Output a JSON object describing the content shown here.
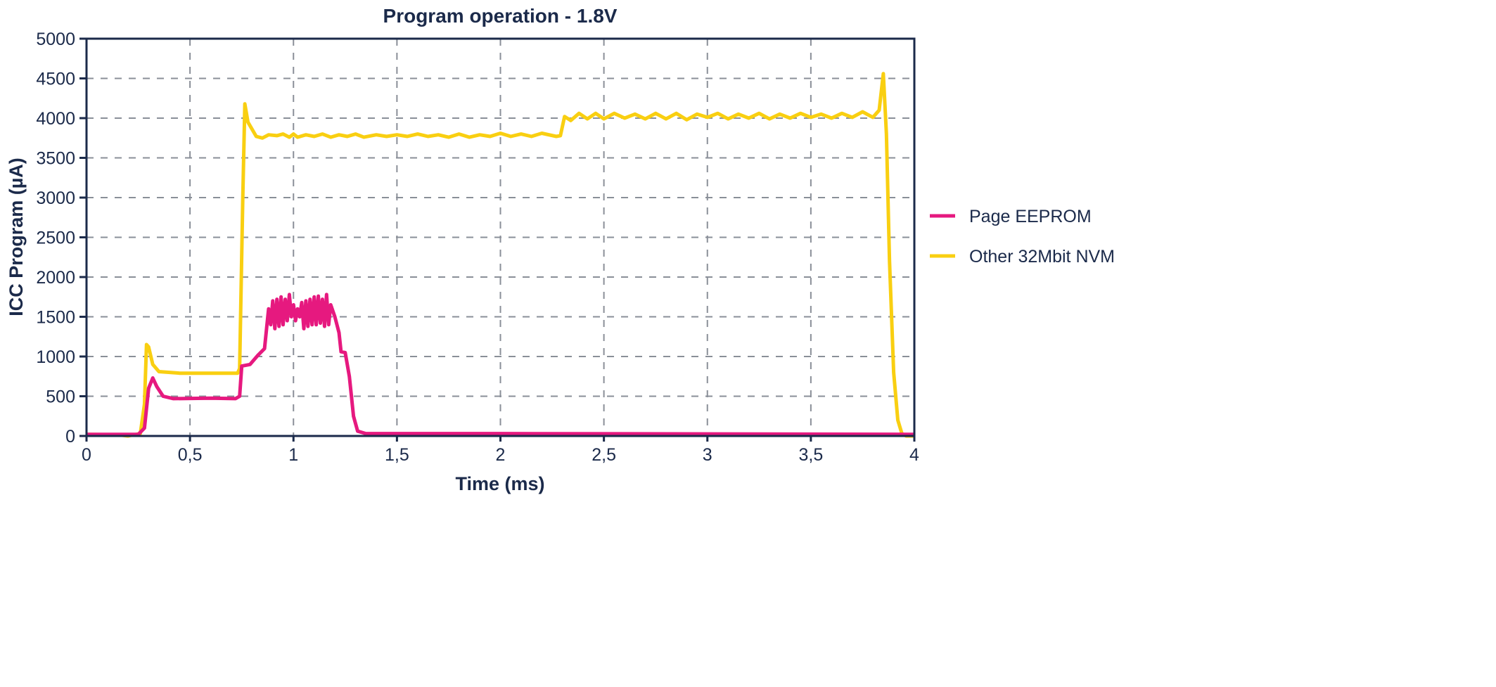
{
  "chart_data": {
    "type": "line",
    "title": "Program operation - 1.8V",
    "xlabel": "Time (ms)",
    "ylabel": "ICC Program (µA)",
    "xlim": [
      0,
      4
    ],
    "ylim": [
      0,
      5000
    ],
    "xticks": [
      0,
      0.5,
      1,
      1.5,
      2,
      2.5,
      3,
      3.5,
      4
    ],
    "xtick_labels": [
      "0",
      "0,5",
      "1",
      "1,5",
      "2",
      "2,5",
      "3",
      "3,5",
      "4"
    ],
    "yticks": [
      0,
      500,
      1000,
      1500,
      2000,
      2500,
      3000,
      3500,
      4000,
      4500,
      5000
    ],
    "ytick_labels": [
      "0",
      "500",
      "1000",
      "1500",
      "2000",
      "2500",
      "3000",
      "3500",
      "4000",
      "4500",
      "5000"
    ],
    "grid": true,
    "legend_position": "right",
    "series": [
      {
        "name": "Page EEPROM",
        "color": "#e6197f",
        "points": [
          [
            0,
            20
          ],
          [
            0.25,
            20
          ],
          [
            0.28,
            100
          ],
          [
            0.3,
            600
          ],
          [
            0.32,
            730
          ],
          [
            0.34,
            620
          ],
          [
            0.37,
            500
          ],
          [
            0.42,
            470
          ],
          [
            0.6,
            475
          ],
          [
            0.72,
            470
          ],
          [
            0.74,
            500
          ],
          [
            0.75,
            880
          ],
          [
            0.79,
            900
          ],
          [
            0.81,
            960
          ],
          [
            0.83,
            1020
          ],
          [
            0.86,
            1100
          ],
          [
            0.87,
            1350
          ],
          [
            0.88,
            1600
          ],
          [
            0.89,
            1400
          ],
          [
            0.9,
            1700
          ],
          [
            0.91,
            1350
          ],
          [
            0.92,
            1720
          ],
          [
            0.93,
            1380
          ],
          [
            0.94,
            1750
          ],
          [
            0.95,
            1400
          ],
          [
            0.96,
            1720
          ],
          [
            0.97,
            1450
          ],
          [
            0.98,
            1780
          ],
          [
            0.99,
            1500
          ],
          [
            1.0,
            1650
          ],
          [
            1.01,
            1450
          ],
          [
            1.02,
            1600
          ],
          [
            1.03,
            1500
          ],
          [
            1.04,
            1680
          ],
          [
            1.05,
            1350
          ],
          [
            1.06,
            1700
          ],
          [
            1.07,
            1380
          ],
          [
            1.08,
            1720
          ],
          [
            1.09,
            1400
          ],
          [
            1.1,
            1750
          ],
          [
            1.11,
            1400
          ],
          [
            1.12,
            1760
          ],
          [
            1.13,
            1420
          ],
          [
            1.14,
            1720
          ],
          [
            1.15,
            1380
          ],
          [
            1.16,
            1780
          ],
          [
            1.17,
            1400
          ],
          [
            1.18,
            1650
          ],
          [
            1.2,
            1500
          ],
          [
            1.22,
            1300
          ],
          [
            1.23,
            1060
          ],
          [
            1.25,
            1050
          ],
          [
            1.27,
            750
          ],
          [
            1.29,
            250
          ],
          [
            1.31,
            60
          ],
          [
            1.35,
            30
          ],
          [
            2,
            30
          ],
          [
            4,
            20
          ]
        ]
      },
      {
        "name": "Other 32Mbit NVM",
        "color": "#f9cf11",
        "points": [
          [
            0,
            20
          ],
          [
            0.15,
            15
          ],
          [
            0.2,
            0
          ],
          [
            0.26,
            30
          ],
          [
            0.28,
            400
          ],
          [
            0.29,
            1150
          ],
          [
            0.3,
            1120
          ],
          [
            0.32,
            900
          ],
          [
            0.35,
            810
          ],
          [
            0.45,
            790
          ],
          [
            0.6,
            790
          ],
          [
            0.73,
            790
          ],
          [
            0.74,
            850
          ],
          [
            0.755,
            3000
          ],
          [
            0.765,
            4180
          ],
          [
            0.78,
            3950
          ],
          [
            0.82,
            3770
          ],
          [
            0.85,
            3750
          ],
          [
            0.88,
            3790
          ],
          [
            0.92,
            3780
          ],
          [
            0.95,
            3800
          ],
          [
            0.98,
            3760
          ],
          [
            1.0,
            3800
          ],
          [
            1.02,
            3760
          ],
          [
            1.06,
            3790
          ],
          [
            1.1,
            3770
          ],
          [
            1.14,
            3800
          ],
          [
            1.18,
            3760
          ],
          [
            1.22,
            3790
          ],
          [
            1.26,
            3770
          ],
          [
            1.3,
            3800
          ],
          [
            1.34,
            3760
          ],
          [
            1.4,
            3790
          ],
          [
            1.45,
            3770
          ],
          [
            1.5,
            3790
          ],
          [
            1.55,
            3770
          ],
          [
            1.6,
            3800
          ],
          [
            1.65,
            3770
          ],
          [
            1.7,
            3790
          ],
          [
            1.75,
            3760
          ],
          [
            1.8,
            3800
          ],
          [
            1.85,
            3760
          ],
          [
            1.9,
            3790
          ],
          [
            1.95,
            3770
          ],
          [
            2.0,
            3810
          ],
          [
            2.05,
            3770
          ],
          [
            2.1,
            3800
          ],
          [
            2.15,
            3770
          ],
          [
            2.2,
            3810
          ],
          [
            2.27,
            3770
          ],
          [
            2.29,
            3780
          ],
          [
            2.31,
            4020
          ],
          [
            2.34,
            3970
          ],
          [
            2.38,
            4060
          ],
          [
            2.42,
            3990
          ],
          [
            2.46,
            4060
          ],
          [
            2.5,
            3990
          ],
          [
            2.55,
            4060
          ],
          [
            2.6,
            4000
          ],
          [
            2.65,
            4050
          ],
          [
            2.7,
            3990
          ],
          [
            2.75,
            4060
          ],
          [
            2.8,
            3990
          ],
          [
            2.85,
            4060
          ],
          [
            2.9,
            3980
          ],
          [
            2.95,
            4050
          ],
          [
            3.0,
            4010
          ],
          [
            3.05,
            4060
          ],
          [
            3.1,
            3990
          ],
          [
            3.15,
            4050
          ],
          [
            3.2,
            4000
          ],
          [
            3.25,
            4060
          ],
          [
            3.3,
            3990
          ],
          [
            3.35,
            4050
          ],
          [
            3.4,
            4000
          ],
          [
            3.45,
            4060
          ],
          [
            3.5,
            4010
          ],
          [
            3.55,
            4050
          ],
          [
            3.6,
            4000
          ],
          [
            3.65,
            4060
          ],
          [
            3.7,
            4010
          ],
          [
            3.75,
            4080
          ],
          [
            3.8,
            4010
          ],
          [
            3.83,
            4100
          ],
          [
            3.85,
            4560
          ],
          [
            3.865,
            3800
          ],
          [
            3.88,
            2200
          ],
          [
            3.9,
            800
          ],
          [
            3.92,
            200
          ],
          [
            3.94,
            30
          ],
          [
            3.96,
            0
          ],
          [
            4,
            0
          ]
        ]
      }
    ]
  }
}
